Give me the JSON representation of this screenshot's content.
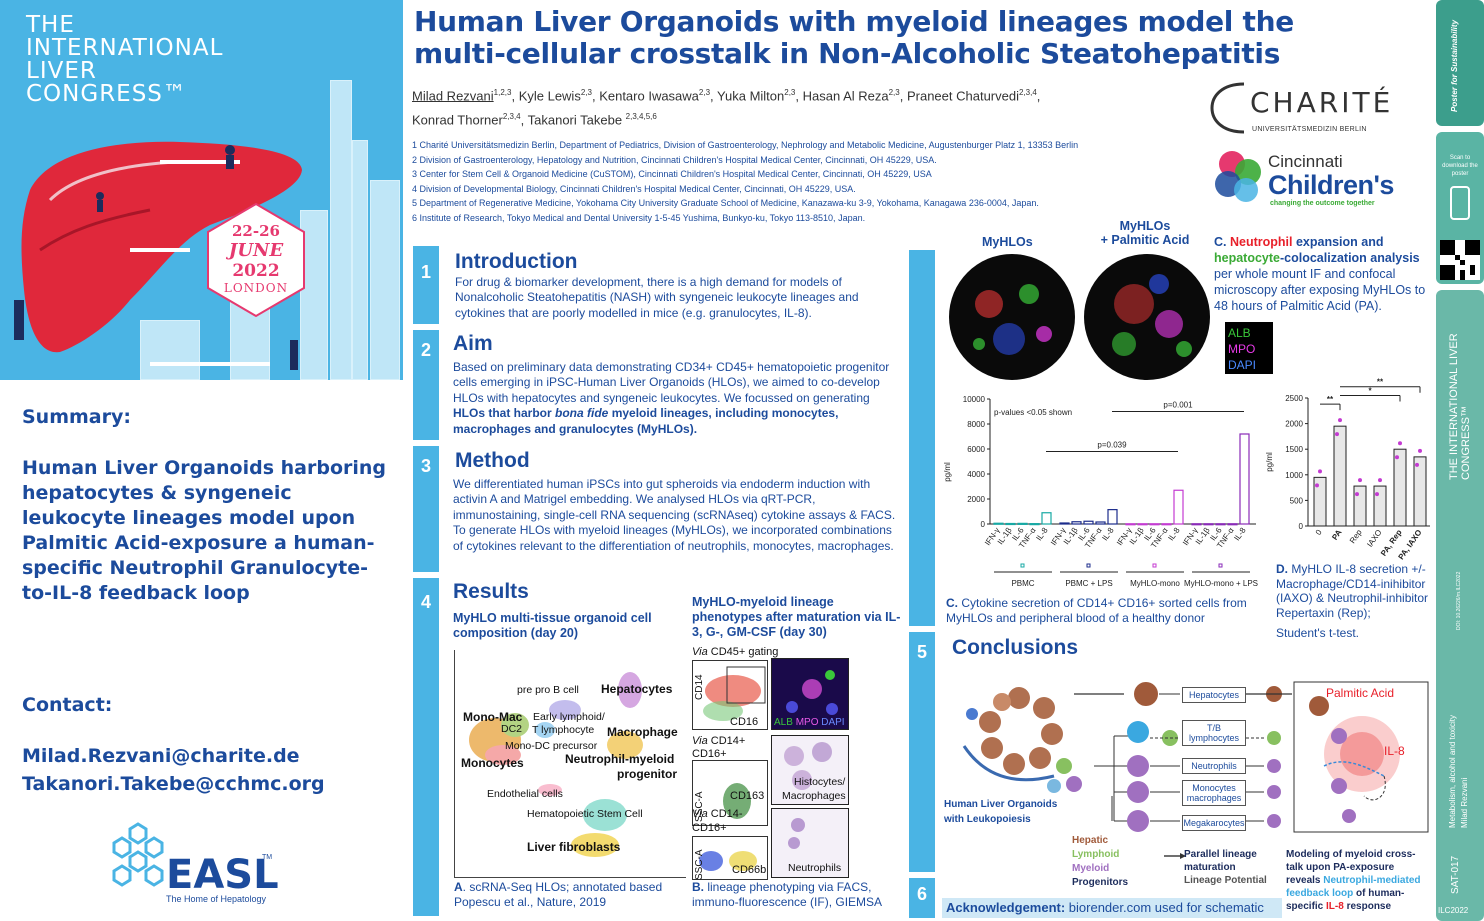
{
  "congress": {
    "lines": [
      "THE",
      "INTERNATIONAL",
      "LIVER",
      "CONGRESS™"
    ],
    "dates": "22-26",
    "month": "JUNE",
    "year": "2022",
    "city": "LONDON"
  },
  "summary": {
    "heading": "Summary:",
    "text": "Human Liver Organoids harboring hepatocytes & syngeneic leukocyte lineages model upon Palmitic Acid-exposure a human-specific Neutrophil Granulocyte-to-IL-8 feedback loop"
  },
  "contact": {
    "heading": "Contact:",
    "emails": [
      "Milad.Rezvani@charite.de",
      "Takanori.Takebe@cchmc.org"
    ]
  },
  "easl": {
    "word": "EASL",
    "tm": "TM",
    "sub": "The Home of Hepatology"
  },
  "title": {
    "line1": "Human Liver Organoids with myeloid lineages model the",
    "line2": "multi-cellular crosstalk in Non-Alcoholic Steatohepatitis"
  },
  "authors": [
    {
      "name": "Milad Rezvani",
      "sup": "1,2,3",
      "sep": ", "
    },
    {
      "name": "Kyle Lewis",
      "sup": "2,3",
      "sep": ", "
    },
    {
      "name": "Kentaro Iwasawa",
      "sup": "2,3",
      "sep": ", "
    },
    {
      "name": "Yuka Milton",
      "sup": "2,3",
      "sep": ", "
    },
    {
      "name": "Hasan Al Reza",
      "sup": "2,3",
      "sep": ", "
    },
    {
      "name": "Praneet Chaturvedi",
      "sup": "2,3,4",
      "sep": ","
    },
    {
      "name": "Konrad Thorner",
      "sup": "2,3,4",
      "sep": ", "
    },
    {
      "name": "Takanori Takebe ",
      "sup": "2,3,4,5,6",
      "sep": ""
    }
  ],
  "affiliations": [
    "1 Charité Universitätsmedizin Berlin, Department of Pediatrics, Division of Gastroenterology, Nephrology and Metabolic Medicine, Augustenburger Platz 1, 13353 Berlin",
    "2 Division of Gastroenterology, Hepatology and Nutrition, Cincinnati Children's Hospital Medical Center, Cincinnati, OH 45229, USA.",
    "3 Center for Stem Cell & Organoid Medicine (CuSTOM), Cincinnati Children's Hospital Medical Center, Cincinnati, OH 45229, USA",
    "4 Division of Developmental Biology, Cincinnati Children's Hospital Medical Center, Cincinnati, OH 45229, USA.",
    "5 Department of Regenerative Medicine, Yokohama City University Graduate School of Medicine, Kanazawa-ku 3-9, Yokohama, Kanagawa 236-0004, Japan.",
    "6 Institute of Research, Tokyo Medical and Dental University 1-5-45 Yushima, Bunkyo-ku, Tokyo 113-8510, Japan."
  ],
  "logos": {
    "charite_word": "CHARITÉ",
    "charite_sub": "UNIVERSITÄTSMEDIZIN BERLIN",
    "cchmc_1": "Cincinnati",
    "cchmc_2": "Children's",
    "cchmc_3": "changing the outcome together"
  },
  "sections": {
    "intro": {
      "num": "1",
      "head": "Introduction",
      "text": "For drug & biomarker development, there is a high demand for models of Nonalcoholic Steatohepatitis (NASH) with syngeneic leukocyte lineages and cytokines that are poorly modelled in mice (e.g. granulocytes, IL-8)."
    },
    "aim": {
      "num": "2",
      "head": "Aim",
      "text_a": "Based on preliminary data demonstrating CD34+ CD45+ hematopoietic progenitor cells emerging in iPSC-Human Liver Organoids (HLOs), we aimed to co-develop HLOs with hepatocytes and syngeneic leukocytes. We focussed on generating ",
      "text_b": "HLOs that harbor ",
      "text_c": "bona fide",
      "text_d": " myeloid lineages, including monocytes, macrophages and granulocytes (MyHLOs)."
    },
    "method": {
      "num": "3",
      "head": "Method",
      "text": "We differentiated human iPSCs into gut spheroids via endoderm induction with activin A and Matrigel embedding. We analysed HLOs via qRT-PCR, immunostaining, single-cell RNA sequencing (scRNAseq) cytokine assays & FACS. To generate HLOs with myeloid lineages (MyHLOs), we incorporated combinations of cytokines relevant to the differentiation of neutrophils, monocytes, macrophages."
    },
    "results": {
      "num": "4",
      "head": "Results",
      "sub_a": "MyHLO multi-tissue organoid cell composition (day 20)",
      "sub_b": "MyHLO-myeloid lineage phenotypes after maturation via IL-3, G-, GM-CSF (day 30)",
      "caption_a_bold": "A",
      "caption_a": ". scRNA-Seq HLOs; annotated based Popescu et al., Nature, 2019",
      "caption_b_bold": "B.",
      "caption_b": " lineage phenotyping via FACS, immuno-fluorescence (IF), GIEMSA"
    },
    "conclusions": {
      "num": "5",
      "head": "Conclusions"
    },
    "six": {
      "num": "6"
    }
  },
  "umap_labels": {
    "prepro": "pre pro B cell",
    "hep": "Hepatocytes",
    "monomac": "Mono-Mac",
    "early": "Early lymphoid/",
    "tlym": "T lymphocyte",
    "dc2": "DC2",
    "macro": "Macrophage",
    "monodc": "Mono-DC precursor",
    "mono": "Monocytes",
    "neutro1": "Neutrophil-myeloid",
    "neutro2": "progenitor",
    "endo": "Endothelial cells",
    "hsc": "Hematopoietic Stem Cell",
    "fib": "Liver fibroblasts"
  },
  "facs": {
    "via1": "Via",
    "gating1": " CD45+ gating",
    "cd14": "CD14",
    "cd16": "CD16",
    "alb": "ALB",
    "mpo": "MPO",
    "dapi": "DAPI",
    "via2": "Via",
    "gating2": " CD14+",
    "cd16p": "CD16+",
    "ssc1": "SSC-A",
    "cd163": "CD163",
    "histo1": "Histocytes/",
    "histo2": "Macrophages",
    "via3": "Via",
    "gating3": " CD14-",
    "cd16p2": "CD16+",
    "ssc2": "SSC-A",
    "cd66b": "CD66b",
    "neutrophils": "Neutrophils"
  },
  "panel_c": {
    "img1": "MyHLOs",
    "img2_1": "MyHLOs",
    "img2_2": "+ Palmitic Acid",
    "title_c": "C.",
    "title_neutro": "Neutrophil",
    "title_exp": " expansion and",
    "title_hep": "hepatocyte",
    "title_rest": "-colocalization analysis",
    "text": "per whole mount IF and confocal microscopy after exposing MyHLOs to 48 hours of Palmitic Acid (PA).",
    "legend": [
      "ALB",
      "MPO",
      "DAPI"
    ],
    "caption_bold": "C.",
    "caption": " Cytokine secretion of CD14+ CD16+ sorted cells from MyHLOs and peripheral blood of a healthy donor"
  },
  "panel_d": {
    "caption_bold": "D.",
    "caption": " MyHLO IL-8 secretion +/- Macrophage/CD14-inihibitor (IAXO) & Neutrophil-inhibitor Repertaxin (Rep);",
    "caption2": "Student's t-test."
  },
  "chart_data": [
    {
      "type": "bar",
      "ylabel": "pg/ml",
      "ylim": [
        0,
        10000
      ],
      "yticks": [
        0,
        2000,
        4000,
        6000,
        8000,
        10000
      ],
      "annotation": "p-values <0.05 shown",
      "categories": [
        "IFN-γ",
        "IL-1β",
        "IL-6",
        "TNF-α",
        "IL-8"
      ],
      "series": [
        {
          "name": "PBMC",
          "values": [
            60,
            40,
            50,
            30,
            900
          ],
          "color": "#17a9a4"
        },
        {
          "name": "PBMC + LPS",
          "values": [
            80,
            180,
            220,
            160,
            1150
          ],
          "color": "#1c2c8c"
        },
        {
          "name": "MyHLO-mono",
          "values": [
            20,
            20,
            20,
            20,
            2700
          ],
          "color": "#c43bd2"
        },
        {
          "name": "MyHLO-mono + LPS",
          "values": [
            20,
            20,
            20,
            20,
            7200
          ],
          "color": "#8a2bb8"
        }
      ],
      "brackets": [
        {
          "label": "p=0.039"
        },
        {
          "label": "p=0.001"
        }
      ]
    },
    {
      "type": "bar",
      "ylabel": "pg/ml",
      "ylim": [
        0,
        2500
      ],
      "yticks": [
        0,
        500,
        1000,
        1500,
        2000,
        2500
      ],
      "categories": [
        "0",
        "PA",
        "Rep",
        "IAXO",
        "PA, Rep",
        "PA, IAXO"
      ],
      "bold_categories": [
        false,
        true,
        false,
        false,
        true,
        true
      ],
      "values": [
        950,
        1950,
        780,
        780,
        1500,
        1350
      ],
      "brackets": [
        {
          "label": "**"
        },
        {
          "label": "*"
        },
        {
          "label": "**"
        }
      ]
    }
  ],
  "conclusions": {
    "hlo1": "Human Liver Organoids",
    "hlo2": "with Leukopoiesis",
    "boxes": [
      "Hepatocytes",
      "T/B lymphocytes",
      "Neutrophils",
      "Monocytes macrophages",
      "Megakarocytes"
    ],
    "pa": "Palmitic Acid",
    "il8": "IL-8",
    "legend_hep": "Hepatic",
    "legend_lym": "Lymphoid",
    "legend_mye": "Myeloid",
    "legend_pro": "Progenitors",
    "arrow1_1": "Parallel lineage",
    "arrow1_2": "maturation",
    "arrow2": "Lineage Potential",
    "model_1": "Modeling of myeloid cross-",
    "model_2": "talk upon PA-exposure",
    "model_3": "reveals ",
    "model_4": "Neutrophil-mediated",
    "model_5": "feedback loop",
    "model_6": " of human-",
    "model_7": "specific ",
    "model_8": "IL-8",
    "model_9": " response"
  },
  "acknowledgement": {
    "bold": "Acknowledgement:",
    "text": " biorender.com used for schematic"
  },
  "strip": {
    "poster": "Poster for Sustainability",
    "scan": "Scan to download the poster",
    "congress": "THE INTERNATIONAL LIVER CONGRESS™",
    "doi": "DOI: 10.26226/m.ILC2022",
    "topic": "Metabolism, alcohol and toxicity",
    "author": "Milad Rezvani",
    "code": "SAT-017",
    "ilc": "ILC2022"
  },
  "colors": {
    "hero_blue": "#4ab4e4",
    "navy": "#1c4b9c",
    "strip_teal": "#3c9e8c",
    "neutro_red": "#e8202a",
    "hep_green": "#3aaa35"
  }
}
